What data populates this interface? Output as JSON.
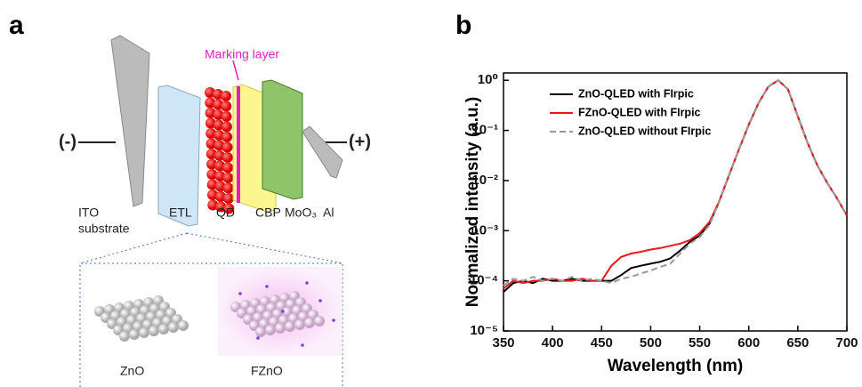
{
  "panel_labels": [
    "a",
    "b"
  ],
  "diagram": {
    "marking_layer": "Marking layer",
    "minus": "(-)",
    "plus": "(+)",
    "layers": [
      "ITO",
      "substrate",
      "ETL",
      "QD",
      "CBP",
      "MoO₃",
      "Al"
    ],
    "inset": [
      "ZnO",
      "FZnO"
    ]
  },
  "chart_data": {
    "type": "line",
    "xlabel": "Wavelength (nm)",
    "ylabel": "Normalized intensity (a.u.)",
    "log_y": true,
    "legend": "upper left",
    "xlim": [
      350,
      700
    ],
    "ylim": [
      1e-05,
      1.4
    ],
    "xticks": [
      350,
      400,
      450,
      500,
      550,
      600,
      650,
      700
    ],
    "yticks": [
      {
        "value": 1e-05,
        "label": "10⁻⁵"
      },
      {
        "value": 0.0001,
        "label": "10⁻⁴"
      },
      {
        "value": 0.001,
        "label": "10⁻³"
      },
      {
        "value": 0.01,
        "label": "10⁻²"
      },
      {
        "value": 0.1,
        "label": "10⁻¹"
      },
      {
        "value": 1,
        "label": "10⁰"
      }
    ],
    "x": [
      350,
      360,
      370,
      380,
      390,
      400,
      410,
      420,
      430,
      440,
      450,
      460,
      470,
      480,
      490,
      500,
      510,
      520,
      530,
      540,
      550,
      560,
      570,
      580,
      590,
      600,
      610,
      620,
      630,
      640,
      650,
      660,
      670,
      680,
      690,
      700
    ],
    "series": [
      {
        "name": "ZnO-QLED with FIrpic",
        "color": "#000000",
        "linestyle": "solid",
        "values": [
          6e-05,
          9e-05,
          0.0001,
          9e-05,
          0.00011,
          0.0001,
          0.0001,
          0.00011,
          0.0001,
          0.0001,
          0.0001,
          0.0001,
          0.00013,
          0.00018,
          0.0002,
          0.00022,
          0.00024,
          0.00028,
          0.0004,
          0.0006,
          0.0008,
          0.0014,
          0.0039,
          0.013,
          0.042,
          0.13,
          0.35,
          0.75,
          1,
          0.66,
          0.19,
          0.056,
          0.02,
          0.009,
          0.0044,
          0.002
        ]
      },
      {
        "name": "FZnO-QLED with FIrpic",
        "color": "#e8191a",
        "linestyle": "solid",
        "values": [
          7e-05,
          0.0001,
          9e-05,
          0.0001,
          0.0001,
          0.00011,
          0.0001,
          0.0001,
          0.00011,
          0.0001,
          0.0001,
          0.0002,
          0.0003,
          0.00035,
          0.00038,
          0.00042,
          0.00045,
          0.0005,
          0.00055,
          0.00065,
          0.0009,
          0.0015,
          0.0039,
          0.013,
          0.042,
          0.13,
          0.35,
          0.75,
          1,
          0.66,
          0.19,
          0.056,
          0.02,
          0.009,
          0.0044,
          0.002
        ]
      },
      {
        "name": "ZnO-QLED without FIrpic",
        "color": "#999999",
        "linestyle": "dashed",
        "values": [
          8e-05,
          0.00011,
          0.0001,
          0.00012,
          0.0001,
          0.00011,
          0.0001,
          0.00012,
          0.0001,
          0.00011,
          0.0001,
          9e-05,
          0.00011,
          0.00012,
          0.00014,
          0.00016,
          0.00019,
          0.00022,
          0.00035,
          0.00055,
          0.00075,
          0.0013,
          0.0038,
          0.013,
          0.042,
          0.13,
          0.35,
          0.75,
          1,
          0.66,
          0.19,
          0.056,
          0.02,
          0.009,
          0.0044,
          0.002
        ]
      }
    ]
  }
}
